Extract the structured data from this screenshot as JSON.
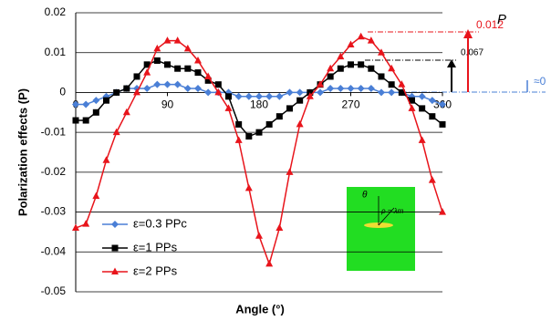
{
  "chart_data": {
    "type": "line",
    "y_label": "Polarization effects (P)",
    "x_label": "Angle (°)",
    "x": [
      0,
      10,
      20,
      30,
      40,
      50,
      60,
      70,
      80,
      90,
      100,
      110,
      120,
      130,
      140,
      150,
      160,
      170,
      180,
      190,
      200,
      210,
      220,
      230,
      240,
      250,
      260,
      270,
      280,
      290,
      300,
      310,
      320,
      330,
      340,
      350,
      360
    ],
    "xlim": [
      0,
      360
    ],
    "xticks": [
      0,
      90,
      180,
      270,
      360
    ],
    "ylim": [
      -0.05,
      0.02
    ],
    "yticks": [
      0.02,
      0.01,
      0,
      -0.01,
      -0.02,
      -0.03,
      -0.04,
      -0.05
    ],
    "grid": true,
    "legend": "lower left",
    "series": [
      {
        "name": "ε=0.3 PPc",
        "color": "#4a7fd6",
        "marker": "diamond",
        "values": [
          -0.003,
          -0.003,
          -0.002,
          -0.001,
          0,
          0.001,
          0.001,
          0.001,
          0.002,
          0.002,
          0.002,
          0.001,
          0.001,
          0,
          0,
          0,
          -0.001,
          -0.001,
          -0.001,
          -0.001,
          -0.001,
          0,
          0,
          0,
          0,
          0.001,
          0.001,
          0.001,
          0.001,
          0.001,
          0,
          0,
          0,
          -0.001,
          -0.001,
          -0.002,
          -0.003
        ]
      },
      {
        "name": "ε=1 PPs",
        "color": "#000000",
        "marker": "square",
        "values": [
          -0.007,
          -0.007,
          -0.005,
          -0.002,
          0,
          0.001,
          0.004,
          0.007,
          0.008,
          0.007,
          0.006,
          0.006,
          0.005,
          0.003,
          0.002,
          -0.001,
          -0.008,
          -0.011,
          -0.01,
          -0.008,
          -0.006,
          -0.004,
          -0.002,
          0,
          0.002,
          0.004,
          0.006,
          0.007,
          0.007,
          0.006,
          0.004,
          0.002,
          0,
          -0.002,
          -0.004,
          -0.006,
          -0.008
        ]
      },
      {
        "name": "ε=2 PPs",
        "color": "#e8141b",
        "marker": "triangle",
        "values": [
          -0.034,
          -0.033,
          -0.026,
          -0.017,
          -0.01,
          -0.005,
          0,
          0.005,
          0.011,
          0.013,
          0.013,
          0.011,
          0.008,
          0.004,
          0,
          -0.004,
          -0.012,
          -0.024,
          -0.036,
          -0.043,
          -0.034,
          -0.02,
          -0.008,
          -0.001,
          0.002,
          0.006,
          0.009,
          0.012,
          0.014,
          0.013,
          0.01,
          0.006,
          0.002,
          -0.004,
          -0.012,
          -0.022,
          -0.03
        ]
      }
    ],
    "annotations": [
      "0.012",
      "P",
      "0.067",
      "≈0",
      "θ",
      "ρ = λm"
    ]
  }
}
